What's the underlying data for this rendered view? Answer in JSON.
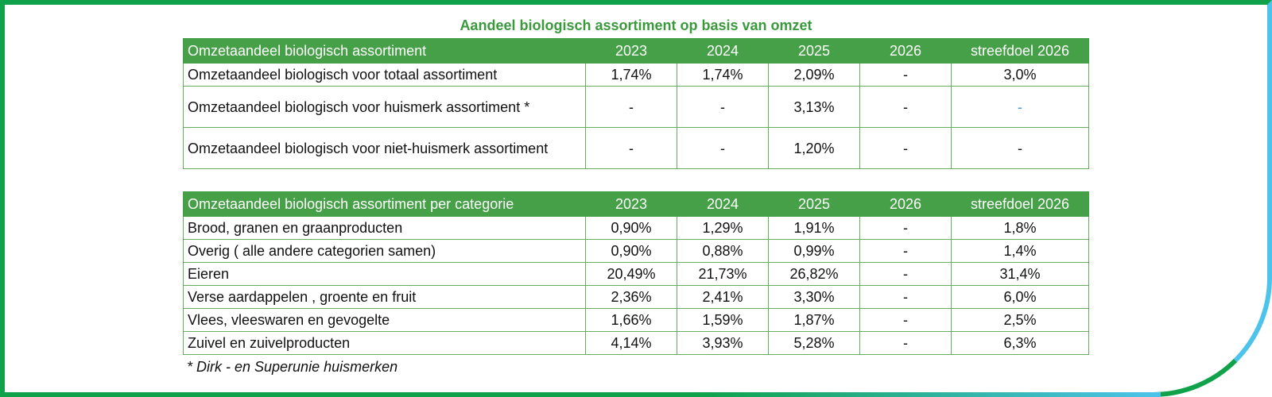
{
  "title": "Aandeel biologisch assortiment op basis van omzet",
  "colors": {
    "header_green": "#46a047",
    "title_green": "#3a9a3b",
    "frame_green": "#0fa24a",
    "frame_blue": "#4cc3ea",
    "dash_blue": "#3d9fd6"
  },
  "chart_data": [
    {
      "type": "table",
      "columns": [
        "Omzetaandeel biologisch assortiment",
        "2023",
        "2024",
        "2025",
        "2026",
        "streefdoel 2026"
      ],
      "rows": [
        [
          "Omzetaandeel biologisch voor totaal assortiment",
          "1,74%",
          "1,74%",
          "2,09%",
          "-",
          "3,0%"
        ],
        [
          "Omzetaandeel biologisch voor huismerk assortiment *",
          "-",
          "-",
          "3,13%",
          "-",
          "-"
        ],
        [
          "Omzetaandeel biologisch voor niet-huismerk assortiment",
          "-",
          "-",
          "1,20%",
          "-",
          "-"
        ]
      ]
    },
    {
      "type": "table",
      "columns": [
        "Omzetaandeel biologisch assortiment per categorie",
        "2023",
        "2024",
        "2025",
        "2026",
        "streefdoel 2026"
      ],
      "rows": [
        [
          "Brood, granen en graanproducten",
          "0,90%",
          "1,29%",
          "1,91%",
          "-",
          "1,8%"
        ],
        [
          "Overig ( alle andere categorien samen)",
          "0,90%",
          "0,88%",
          "0,99%",
          "-",
          "1,4%"
        ],
        [
          "Eieren",
          "20,49%",
          "21,73%",
          "26,82%",
          "-",
          "31,4%"
        ],
        [
          "Verse aardappelen , groente en fruit",
          "2,36%",
          "2,41%",
          "3,30%",
          "-",
          "6,0%"
        ],
        [
          "Vlees, vleeswaren en gevogelte",
          "1,66%",
          "1,59%",
          "1,87%",
          "-",
          "2,5%"
        ],
        [
          "Zuivel en zuivelproducten",
          "4,14%",
          "3,93%",
          "5,28%",
          "-",
          "6,3%"
        ]
      ]
    }
  ],
  "footnote": "* Dirk - en Superunie huismerken"
}
